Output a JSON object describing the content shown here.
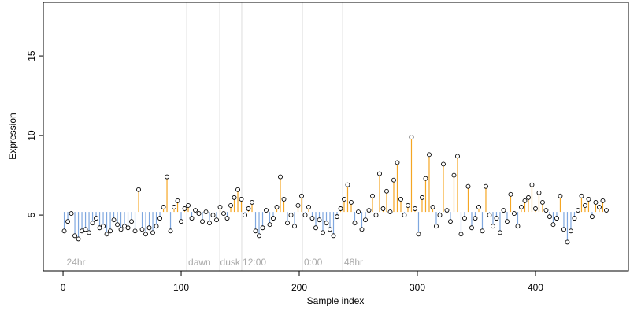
{
  "chart_data": {
    "type": "lollipop-scatter",
    "x_label": "Sample index",
    "y_label": "Expression",
    "xlim": [
      -16.7,
      478.7
    ],
    "ylim": [
      1.49,
      18.37
    ],
    "xticks": [
      0,
      100,
      200,
      300,
      400
    ],
    "yticks": [
      5,
      10,
      15
    ],
    "color_above": "#f5a623",
    "color_below": "#7ea7df",
    "vlines": [
      104.7,
      132.7,
      151.3,
      202.7,
      236.7
    ],
    "annotations": [
      {
        "x": 3,
        "label": "24hr"
      },
      {
        "x": 106,
        "label": "dawn"
      },
      {
        "x": 133,
        "label": "dusk"
      },
      {
        "x": 152,
        "label": "12:00"
      },
      {
        "x": 204,
        "label": "0:00"
      },
      {
        "x": 238,
        "label": "48hr"
      }
    ],
    "x": [
      1,
      4,
      7,
      10,
      13,
      16,
      19,
      22,
      25,
      28,
      31,
      34,
      37,
      40,
      43,
      46,
      49,
      52,
      55,
      58,
      61,
      64,
      67,
      70,
      73,
      76,
      79,
      82,
      85,
      88,
      91,
      94,
      97,
      100,
      103,
      106,
      109,
      112,
      115,
      118,
      121,
      124,
      127,
      130,
      133,
      136,
      139,
      142,
      145,
      148,
      151,
      154,
      157,
      160,
      163,
      166,
      169,
      172,
      175,
      178,
      181,
      184,
      187,
      190,
      193,
      196,
      199,
      202,
      205,
      208,
      211,
      214,
      217,
      220,
      223,
      226,
      229,
      232,
      235,
      238,
      241,
      244,
      247,
      250,
      253,
      256,
      259,
      262,
      265,
      268,
      271,
      274,
      277,
      280,
      283,
      286,
      289,
      292,
      295,
      298,
      301,
      304,
      307,
      310,
      313,
      316,
      319,
      322,
      325,
      328,
      331,
      334,
      337,
      340,
      343,
      346,
      349,
      352,
      355,
      358,
      361,
      364,
      367,
      370,
      373,
      376,
      379,
      382,
      385,
      388,
      391,
      394,
      397,
      400,
      403,
      406,
      409,
      412,
      415,
      418,
      421,
      424,
      427,
      430,
      433,
      436,
      439,
      442,
      445,
      448,
      451,
      454,
      457,
      460
    ],
    "values": [
      4.0,
      4.6,
      5.1,
      3.7,
      3.5,
      4.0,
      4.1,
      3.9,
      4.5,
      4.8,
      4.2,
      4.3,
      3.8,
      4.0,
      4.7,
      4.4,
      4.1,
      4.3,
      4.2,
      4.6,
      4.0,
      6.6,
      4.1,
      3.8,
      4.2,
      3.9,
      4.3,
      4.8,
      5.5,
      7.4,
      4.0,
      5.5,
      5.9,
      4.6,
      5.4,
      5.6,
      4.8,
      5.3,
      5.1,
      4.6,
      5.2,
      4.5,
      5.0,
      4.7,
      5.5,
      5.1,
      4.8,
      5.6,
      6.1,
      6.6,
      6.0,
      5.0,
      5.4,
      5.8,
      4.0,
      3.7,
      4.2,
      5.3,
      4.4,
      4.8,
      5.5,
      7.4,
      6.0,
      4.5,
      5.0,
      4.3,
      5.6,
      6.2,
      5.0,
      5.5,
      4.8,
      4.2,
      4.7,
      3.9,
      4.5,
      4.1,
      3.7,
      4.9,
      5.4,
      6.0,
      6.9,
      5.8,
      4.5,
      5.2,
      4.1,
      4.7,
      5.3,
      6.2,
      5.0,
      7.6,
      5.4,
      6.5,
      5.2,
      7.2,
      8.3,
      6.0,
      5.0,
      5.6,
      9.9,
      5.4,
      3.8,
      6.1,
      7.3,
      8.8,
      5.5,
      4.3,
      5.0,
      8.2,
      5.3,
      4.6,
      7.5,
      8.7,
      3.8,
      4.8,
      6.8,
      4.2,
      4.8,
      5.5,
      4.0,
      6.8,
      5.0,
      4.3,
      4.8,
      3.9,
      5.3,
      4.6,
      6.3,
      5.1,
      4.3,
      5.5,
      5.9,
      6.1,
      6.9,
      5.4,
      6.4,
      5.8,
      5.3,
      4.9,
      4.4,
      4.8,
      6.2,
      4.1,
      3.3,
      4.0,
      4.8,
      5.3,
      6.2,
      5.6,
      6.0,
      4.9,
      5.8,
      5.5,
      5.9,
      5.3
    ]
  }
}
